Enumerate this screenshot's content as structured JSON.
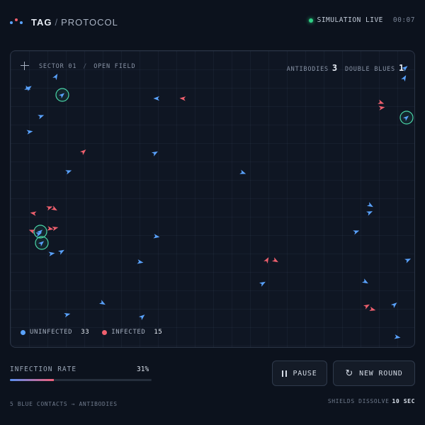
{
  "header": {
    "brand_strong": "TAG",
    "brand_sep": "/",
    "brand_light": "PROTOCOL",
    "status_label": "SIMULATION LIVE",
    "timer": "00:07"
  },
  "field": {
    "sector": "SECTOR 01",
    "sector_sep": "/",
    "area": "OPEN FIELD",
    "antibodies_label": "ANTIBODIES",
    "antibodies_count": "3",
    "double_blues_label": "DOUBLE BLUES",
    "double_blues_count": "1"
  },
  "legend": {
    "uninfected_label": "UNINFECTED",
    "uninfected_count": "33",
    "infected_label": "INFECTED",
    "infected_count": "15"
  },
  "infection": {
    "label": "INFECTION RATE",
    "percent_text": "31%",
    "rate": 0.31
  },
  "buttons": {
    "pause_label": "PAUSE",
    "new_round_label": "NEW ROUND"
  },
  "footer": {
    "rule": "5 BLUE CONTACTS → ANTIBODIES",
    "shields_label": "SHIELDS DISSOLVE",
    "shields_time": "10 SEC"
  },
  "colors": {
    "blue": "#5aa3ff",
    "red": "#f0606e",
    "shield": "#49d6a8",
    "live": "#2fcf85"
  },
  "icons": {
    "logo": "three-dot-logo-icon",
    "crosshair": "crosshair-icon",
    "pause": "pause-icon",
    "new_round": "refresh-icon"
  }
}
